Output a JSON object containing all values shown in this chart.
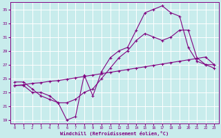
{
  "xlabel": "Windchill (Refroidissement éolien,°C)",
  "bg_color": "#c8ecec",
  "line_color": "#800080",
  "grid_color": "#ffffff",
  "xlim": [
    -0.5,
    23.5
  ],
  "ylim": [
    18.5,
    36
  ],
  "xticks": [
    0,
    1,
    2,
    3,
    4,
    5,
    6,
    7,
    8,
    9,
    10,
    11,
    12,
    13,
    14,
    15,
    16,
    17,
    18,
    19,
    20,
    21,
    22,
    23
  ],
  "yticks": [
    19,
    21,
    23,
    25,
    27,
    29,
    31,
    33,
    35
  ],
  "line1_x": [
    0,
    1,
    2,
    3,
    4,
    5,
    6,
    7,
    8,
    9,
    10,
    11,
    12,
    13,
    14,
    15,
    16,
    17,
    18,
    19,
    20,
    21,
    22,
    23
  ],
  "line1_y": [
    24.0,
    24.0,
    23.0,
    23.0,
    22.5,
    21.5,
    19.0,
    19.5,
    25.5,
    22.5,
    26.0,
    28.0,
    29.0,
    29.5,
    32.0,
    34.5,
    35.0,
    35.5,
    34.5,
    34.0,
    29.5,
    27.5,
    27.0,
    27.0
  ],
  "line2_x": [
    0,
    1,
    2,
    3,
    4,
    5,
    6,
    7,
    8,
    9,
    10,
    11,
    12,
    13,
    14,
    15,
    16,
    17,
    18,
    19,
    20,
    21,
    22,
    23
  ],
  "line2_y": [
    24.0,
    24.1,
    24.3,
    24.4,
    24.6,
    24.7,
    24.9,
    25.1,
    25.3,
    25.5,
    25.7,
    25.9,
    26.1,
    26.3,
    26.5,
    26.7,
    26.9,
    27.1,
    27.3,
    27.5,
    27.7,
    27.9,
    28.1,
    27.0
  ],
  "line3_x": [
    0,
    1,
    2,
    3,
    4,
    5,
    6,
    7,
    8,
    9,
    10,
    11,
    12,
    13,
    14,
    15,
    16,
    17,
    18,
    19,
    20,
    21,
    22,
    23
  ],
  "line3_y": [
    24.5,
    24.5,
    23.5,
    22.5,
    22.0,
    21.5,
    21.5,
    22.0,
    23.0,
    23.5,
    25.0,
    26.5,
    28.0,
    29.0,
    30.5,
    31.5,
    31.0,
    30.5,
    31.0,
    32.0,
    32.0,
    28.0,
    27.0,
    26.5
  ]
}
